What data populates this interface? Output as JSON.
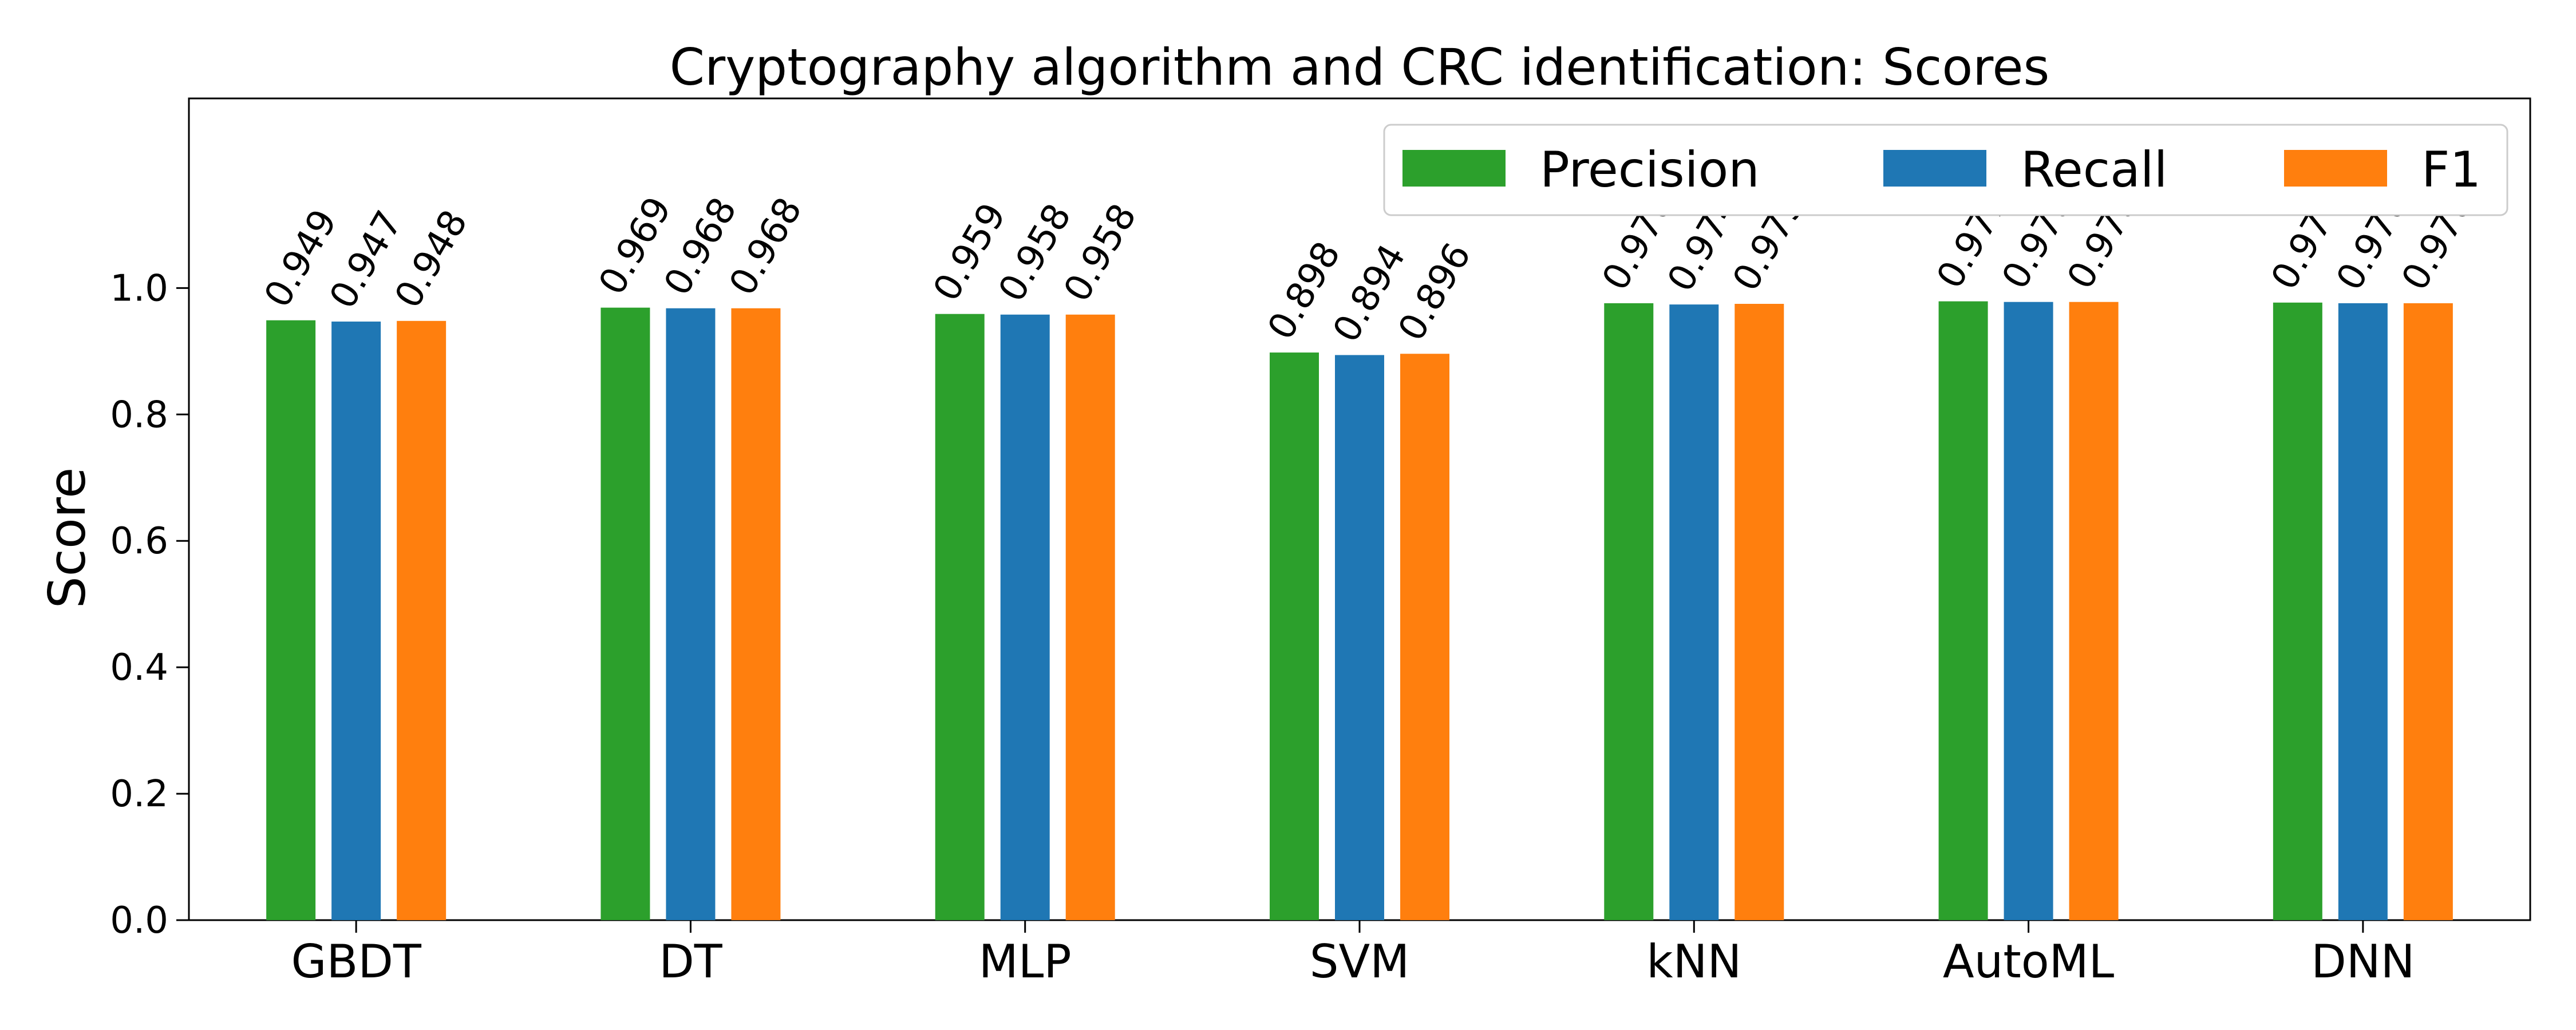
{
  "chart_data": {
    "type": "bar",
    "title": "Cryptography algorithm and CRC identification: Scores",
    "xlabel": "",
    "ylabel": "Score",
    "ylim": [
      0,
      1.3
    ],
    "yticks": [
      "0.0",
      "0.2",
      "0.4",
      "0.6",
      "0.8",
      "1.0"
    ],
    "categories": [
      "GBDT",
      "DT",
      "MLP",
      "SVM",
      "kNN",
      "AutoML",
      "DNN"
    ],
    "series": [
      {
        "name": "Precision",
        "color": "#2ca02c",
        "values": [
          0.949,
          0.969,
          0.959,
          0.898,
          0.976,
          0.979,
          0.977
        ]
      },
      {
        "name": "Recall",
        "color": "#1f77b4",
        "values": [
          0.947,
          0.968,
          0.958,
          0.894,
          0.974,
          0.978,
          0.976
        ]
      },
      {
        "name": "F1",
        "color": "#ff7f0e",
        "values": [
          0.948,
          0.968,
          0.958,
          0.896,
          0.975,
          0.978,
          0.976
        ]
      }
    ],
    "value_labels": [
      [
        "0.949",
        "0.947",
        "0.948"
      ],
      [
        "0.969",
        "0.968",
        "0.968"
      ],
      [
        "0.959",
        "0.958",
        "0.958"
      ],
      [
        "0.898",
        "0.894",
        "0.896"
      ],
      [
        "0.976",
        "0.974",
        "0.975"
      ],
      [
        "0.979",
        "0.978",
        "0.978"
      ],
      [
        "0.977",
        "0.976",
        "0.976"
      ]
    ],
    "legend": "top-right",
    "grid": false
  }
}
